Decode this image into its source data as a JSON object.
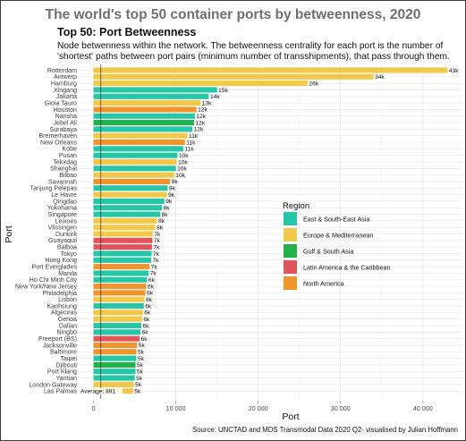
{
  "header": {
    "title": "The world's top 50 container ports by betweenness, 2020",
    "subtitle": "Top 50: Port Betweenness",
    "description": "Node betwenness within the network. The betweenness centrality for each port is the number of 'shortest' paths between port pairs (minimum number of transshipments), that pass through them."
  },
  "caption": "Source: UNCTAD and MDS Transmodal Data 2020 Q2- visualised by Julian Hoffmann",
  "colors": {
    "East & South-East Asia": "#26c6a6",
    "Europe & Mediterranean": "#f2c84b",
    "Gulf & South Asia": "#22b24c",
    "Latin America & the Caribbean": "#e0545a",
    "North America": "#f0942c"
  },
  "chart_data": {
    "type": "bar",
    "orientation": "horizontal",
    "xlabel": "Port",
    "ylabel": "Port",
    "xlim": [
      -1800,
      44800
    ],
    "xticks": [
      0,
      10000,
      20000,
      30000,
      40000
    ],
    "xtick_labels": [
      "0",
      "10 000",
      "20 000",
      "30 000",
      "40 000"
    ],
    "grid": true,
    "legend": {
      "title": "Region",
      "position": "right",
      "entries": [
        "East & South-East Asia",
        "Europe & Mediterranean",
        "Gulf & South Asia",
        "Latin America & the Caribbean",
        "North America"
      ]
    },
    "average": {
      "value": 891,
      "label": "Average: 891"
    },
    "series": [
      {
        "port": "Rotterdam",
        "value": 43000,
        "label": "43k",
        "region": "Europe & Mediterranean"
      },
      {
        "port": "Antwerp",
        "value": 34000,
        "label": "34k",
        "region": "Europe & Mediterranean"
      },
      {
        "port": "Hamburg",
        "value": 26000,
        "label": "26k",
        "region": "Europe & Mediterranean"
      },
      {
        "port": "Xingang",
        "value": 15000,
        "label": "15k",
        "region": "East & South-East Asia"
      },
      {
        "port": "Jakarta",
        "value": 14000,
        "label": "14k",
        "region": "East & South-East Asia"
      },
      {
        "port": "Gioia Tauro",
        "value": 13000,
        "label": "13k",
        "region": "Europe & Mediterranean"
      },
      {
        "port": "Houston",
        "value": 12500,
        "label": "12k",
        "region": "North America"
      },
      {
        "port": "Nansha",
        "value": 12300,
        "label": "12k",
        "region": "East & South-East Asia"
      },
      {
        "port": "Jebel Ali",
        "value": 12200,
        "label": "12k",
        "region": "Gulf & South Asia"
      },
      {
        "port": "Surabaya",
        "value": 12000,
        "label": "12k",
        "region": "East & South-East Asia"
      },
      {
        "port": "Bremerhaven",
        "value": 11400,
        "label": "11k",
        "region": "Europe & Mediterranean"
      },
      {
        "port": "New Orleans",
        "value": 11100,
        "label": "11k",
        "region": "North America"
      },
      {
        "port": "Kobe",
        "value": 10900,
        "label": "11k",
        "region": "East & South-East Asia"
      },
      {
        "port": "Pusan",
        "value": 10200,
        "label": "10k",
        "region": "East & South-East Asia"
      },
      {
        "port": "Tekirdag",
        "value": 10100,
        "label": "10k",
        "region": "Europe & Mediterranean"
      },
      {
        "port": "Shanghai",
        "value": 10000,
        "label": "10k",
        "region": "East & South-East Asia"
      },
      {
        "port": "Bilbao",
        "value": 9800,
        "label": "10k",
        "region": "Europe & Mediterranean"
      },
      {
        "port": "Savannah",
        "value": 9300,
        "label": "9k",
        "region": "North America"
      },
      {
        "port": "Tanjung Pelepas",
        "value": 9000,
        "label": "9k",
        "region": "East & South-East Asia"
      },
      {
        "port": "Le Havre",
        "value": 8900,
        "label": "9k",
        "region": "Europe & Mediterranean"
      },
      {
        "port": "Qingdao",
        "value": 8600,
        "label": "9k",
        "region": "East & South-East Asia"
      },
      {
        "port": "Yokohama",
        "value": 8300,
        "label": "8k",
        "region": "East & South-East Asia"
      },
      {
        "port": "Singapore",
        "value": 8100,
        "label": "8k",
        "region": "East & South-East Asia"
      },
      {
        "port": "Leixoes",
        "value": 7700,
        "label": "8k",
        "region": "Europe & Mediterranean"
      },
      {
        "port": "Vlissingen",
        "value": 7500,
        "label": "8k",
        "region": "Europe & Mediterranean"
      },
      {
        "port": "Dunkirk",
        "value": 7200,
        "label": "7k",
        "region": "Europe & Mediterranean"
      },
      {
        "port": "Guayaquil",
        "value": 7150,
        "label": "7k",
        "region": "Latin America & the Caribbean"
      },
      {
        "port": "Balboa",
        "value": 7100,
        "label": "7k",
        "region": "Latin America & the Caribbean"
      },
      {
        "port": "Tokyo",
        "value": 7050,
        "label": "7k",
        "region": "East & South-East Asia"
      },
      {
        "port": "Hong Kong",
        "value": 7000,
        "label": "7k",
        "region": "East & South-East Asia"
      },
      {
        "port": "Port Everglades",
        "value": 6800,
        "label": "7k",
        "region": "North America"
      },
      {
        "port": "Manila",
        "value": 6700,
        "label": "7k",
        "region": "East & South-East Asia"
      },
      {
        "port": "Ho Chi Minh City",
        "value": 6500,
        "label": "6k",
        "region": "East & South-East Asia"
      },
      {
        "port": "New York/New Jersey",
        "value": 6400,
        "label": "6k",
        "region": "North America"
      },
      {
        "port": "Philadelphia",
        "value": 6300,
        "label": "6k",
        "region": "North America"
      },
      {
        "port": "Lisbon",
        "value": 6200,
        "label": "6k",
        "region": "Europe & Mediterranean"
      },
      {
        "port": "Kaohsiung",
        "value": 6100,
        "label": "6k",
        "region": "East & South-East Asia"
      },
      {
        "port": "Algeciras",
        "value": 6000,
        "label": "6k",
        "region": "Europe & Mediterranean"
      },
      {
        "port": "Genoa",
        "value": 5900,
        "label": "6k",
        "region": "Europe & Mediterranean"
      },
      {
        "port": "Dalian",
        "value": 5800,
        "label": "6k",
        "region": "East & South-East Asia"
      },
      {
        "port": "Ningbo",
        "value": 5700,
        "label": "6k",
        "region": "East & South-East Asia"
      },
      {
        "port": "Freeport (BS)",
        "value": 5600,
        "label": "6k",
        "region": "Latin America & the Caribbean"
      },
      {
        "port": "Jacksonville",
        "value": 5300,
        "label": "5k",
        "region": "North America"
      },
      {
        "port": "Baltimore",
        "value": 5200,
        "label": "5k",
        "region": "North America"
      },
      {
        "port": "Taipei",
        "value": 5200,
        "label": "5k",
        "region": "East & South-East Asia"
      },
      {
        "port": "Djibouti",
        "value": 5100,
        "label": "5k",
        "region": "Gulf & South Asia"
      },
      {
        "port": "Port Klang",
        "value": 5100,
        "label": "5k",
        "region": "East & South-East Asia"
      },
      {
        "port": "Yantian",
        "value": 5000,
        "label": "5k",
        "region": "East & South-East Asia"
      },
      {
        "port": "London Gateway",
        "value": 4900,
        "label": "5k",
        "region": "Europe & Mediterranean"
      },
      {
        "port": "Las Palmas",
        "value": 4800,
        "label": "5k",
        "region": "Europe & Mediterranean"
      }
    ]
  }
}
